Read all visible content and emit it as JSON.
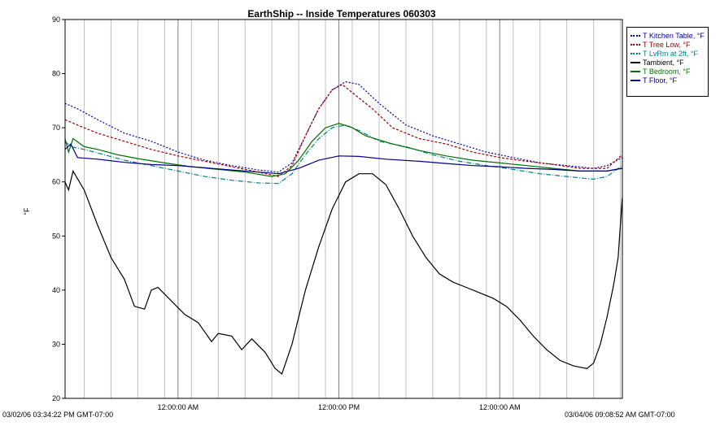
{
  "chart_data": {
    "type": "line",
    "title": "EarthShip -- Inside Temperatures 060303",
    "ylabel": "°F",
    "xlabel": "",
    "ylim": [
      20,
      90
    ],
    "y_ticks": [
      "20",
      "30",
      "40",
      "50",
      "60",
      "70",
      "80",
      "90"
    ],
    "x_range": [
      "2006-03-02T15:34:22-07:00",
      "2006-03-04T09:08:52-07:00"
    ],
    "x_ticks": [
      {
        "t": "2006-03-03T00:00:00-07:00",
        "label": "12:00:00 AM"
      },
      {
        "t": "2006-03-03T12:00:00-07:00",
        "label": "12:00:00 PM"
      },
      {
        "t": "2006-03-04T00:00:00-07:00",
        "label": "12:00:00 AM"
      }
    ],
    "x_start_label": "03/02/06 03:34:22 PM GMT-07:00",
    "x_end_label": "03/04/06 09:08:52 AM GMT-07:00",
    "grid": "vertical lines",
    "legend_position": "top-right",
    "series": [
      {
        "name": "T Kitchen Table, °F",
        "color": "#0000a0",
        "dash": "2,2",
        "points": [
          [
            "2006-03-02T15:34",
            "74.5"
          ],
          [
            "2006-03-02T16:30",
            "73.5"
          ],
          [
            "2006-03-02T18:00",
            "71.5"
          ],
          [
            "2006-03-02T20:00",
            "69.0"
          ],
          [
            "2006-03-02T22:00",
            "67.5"
          ],
          [
            "2006-03-03T00:00",
            "65.5"
          ],
          [
            "2006-03-03T02:00",
            "64.0"
          ],
          [
            "2006-03-03T04:00",
            "63.0"
          ],
          [
            "2006-03-03T06:00",
            "62.2"
          ],
          [
            "2006-03-03T07:30",
            "61.8"
          ],
          [
            "2006-03-03T08:30",
            "63.5"
          ],
          [
            "2006-03-03T09:30",
            "68.5"
          ],
          [
            "2006-03-03T10:30",
            "73.5"
          ],
          [
            "2006-03-03T11:30",
            "77.0"
          ],
          [
            "2006-03-03T12:30",
            "78.5"
          ],
          [
            "2006-03-03T13:30",
            "78.0"
          ],
          [
            "2006-03-03T15:00",
            "74.5"
          ],
          [
            "2006-03-03T17:00",
            "70.5"
          ],
          [
            "2006-03-03T19:00",
            "68.5"
          ],
          [
            "2006-03-03T21:00",
            "67.0"
          ],
          [
            "2006-03-03T23:00",
            "65.5"
          ],
          [
            "2006-03-04T01:00",
            "64.5"
          ],
          [
            "2006-03-04T03:00",
            "63.5"
          ],
          [
            "2006-03-04T05:00",
            "63.0"
          ],
          [
            "2006-03-04T07:00",
            "62.5"
          ],
          [
            "2006-03-04T08:00",
            "63.0"
          ],
          [
            "2006-03-04T09:08",
            "64.5"
          ]
        ]
      },
      {
        "name": "T Tree Low, °F",
        "color": "#a00000",
        "dash": "3,2",
        "points": [
          [
            "2006-03-02T15:34",
            "71.5"
          ],
          [
            "2006-03-02T16:30",
            "70.5"
          ],
          [
            "2006-03-02T18:00",
            "69.0"
          ],
          [
            "2006-03-02T20:00",
            "67.5"
          ],
          [
            "2006-03-02T22:00",
            "66.0"
          ],
          [
            "2006-03-03T00:00",
            "64.8"
          ],
          [
            "2006-03-03T02:00",
            "63.8"
          ],
          [
            "2006-03-03T04:00",
            "62.8"
          ],
          [
            "2006-03-03T06:00",
            "61.8"
          ],
          [
            "2006-03-03T07:30",
            "61.0"
          ],
          [
            "2006-03-03T08:30",
            "63.0"
          ],
          [
            "2006-03-03T09:30",
            "68.5"
          ],
          [
            "2006-03-03T10:30",
            "73.5"
          ],
          [
            "2006-03-03T11:30",
            "77.0"
          ],
          [
            "2006-03-03T12:15",
            "78.0"
          ],
          [
            "2006-03-03T13:00",
            "76.5"
          ],
          [
            "2006-03-03T14:30",
            "73.5"
          ],
          [
            "2006-03-03T16:00",
            "70.0"
          ],
          [
            "2006-03-03T18:00",
            "68.0"
          ],
          [
            "2006-03-03T20:00",
            "67.0"
          ],
          [
            "2006-03-03T22:00",
            "65.5"
          ],
          [
            "2006-03-04T00:00",
            "64.5"
          ],
          [
            "2006-03-04T02:00",
            "63.8"
          ],
          [
            "2006-03-04T04:00",
            "63.2"
          ],
          [
            "2006-03-04T06:00",
            "62.5"
          ],
          [
            "2006-03-04T08:00",
            "62.5"
          ],
          [
            "2006-03-04T09:08",
            "65.0"
          ]
        ]
      },
      {
        "name": "T LvRm at 2ft, °F",
        "color": "#008080",
        "dash": "6,2,1,2",
        "points": [
          [
            "2006-03-02T15:34",
            "67.5"
          ],
          [
            "2006-03-02T16:00",
            "66.5"
          ],
          [
            "2006-03-02T17:00",
            "66.0"
          ],
          [
            "2006-03-02T18:30",
            "65.0"
          ],
          [
            "2006-03-02T20:00",
            "64.0"
          ],
          [
            "2006-03-02T22:00",
            "63.0"
          ],
          [
            "2006-03-03T00:00",
            "62.0"
          ],
          [
            "2006-03-03T02:00",
            "61.0"
          ],
          [
            "2006-03-03T04:00",
            "60.3"
          ],
          [
            "2006-03-03T06:00",
            "59.8"
          ],
          [
            "2006-03-03T07:30",
            "59.7"
          ],
          [
            "2006-03-03T08:30",
            "61.5"
          ],
          [
            "2006-03-03T09:30",
            "65.0"
          ],
          [
            "2006-03-03T10:30",
            "68.0"
          ],
          [
            "2006-03-03T11:30",
            "70.0"
          ],
          [
            "2006-03-03T12:30",
            "70.5"
          ],
          [
            "2006-03-03T13:30",
            "69.5"
          ],
          [
            "2006-03-03T15:00",
            "67.5"
          ],
          [
            "2006-03-03T17:00",
            "66.5"
          ],
          [
            "2006-03-03T19:00",
            "65.0"
          ],
          [
            "2006-03-03T21:00",
            "63.8"
          ],
          [
            "2006-03-03T23:00",
            "63.0"
          ],
          [
            "2006-03-04T01:00",
            "62.3"
          ],
          [
            "2006-03-04T03:00",
            "61.5"
          ],
          [
            "2006-03-04T05:00",
            "61.0"
          ],
          [
            "2006-03-04T07:00",
            "60.5"
          ],
          [
            "2006-03-04T08:00",
            "61.0"
          ],
          [
            "2006-03-04T09:08",
            "63.0"
          ]
        ]
      },
      {
        "name": "Tambient, °F",
        "color": "#000000",
        "dash": "",
        "points": [
          [
            "2006-03-02T15:34",
            "60.0"
          ],
          [
            "2006-03-02T15:50",
            "58.5"
          ],
          [
            "2006-03-02T16:10",
            "62.0"
          ],
          [
            "2006-03-02T17:00",
            "58.5"
          ],
          [
            "2006-03-02T18:00",
            "52.0"
          ],
          [
            "2006-03-02T19:00",
            "46.0"
          ],
          [
            "2006-03-02T20:00",
            "42.0"
          ],
          [
            "2006-03-02T20:45",
            "37.0"
          ],
          [
            "2006-03-02T21:30",
            "36.5"
          ],
          [
            "2006-03-02T22:00",
            "40.0"
          ],
          [
            "2006-03-02T22:30",
            "40.5"
          ],
          [
            "2006-03-02T23:30",
            "38.0"
          ],
          [
            "2006-03-03T00:30",
            "35.5"
          ],
          [
            "2006-03-03T01:30",
            "34.0"
          ],
          [
            "2006-03-03T02:30",
            "30.5"
          ],
          [
            "2006-03-03T03:00",
            "32.0"
          ],
          [
            "2006-03-03T04:00",
            "31.5"
          ],
          [
            "2006-03-03T04:45",
            "29.0"
          ],
          [
            "2006-03-03T05:30",
            "31.0"
          ],
          [
            "2006-03-03T06:30",
            "28.5"
          ],
          [
            "2006-03-03T07:15",
            "25.5"
          ],
          [
            "2006-03-03T07:45",
            "24.5"
          ],
          [
            "2006-03-03T08:30",
            "30.0"
          ],
          [
            "2006-03-03T09:30",
            "40.0"
          ],
          [
            "2006-03-03T10:30",
            "48.0"
          ],
          [
            "2006-03-03T11:30",
            "55.0"
          ],
          [
            "2006-03-03T12:30",
            "60.0"
          ],
          [
            "2006-03-03T13:30",
            "61.5"
          ],
          [
            "2006-03-03T14:30",
            "61.5"
          ],
          [
            "2006-03-03T15:30",
            "59.5"
          ],
          [
            "2006-03-03T16:30",
            "55.0"
          ],
          [
            "2006-03-03T17:30",
            "50.0"
          ],
          [
            "2006-03-03T18:30",
            "46.0"
          ],
          [
            "2006-03-03T19:30",
            "43.0"
          ],
          [
            "2006-03-03T20:30",
            "41.5"
          ],
          [
            "2006-03-03T21:30",
            "40.5"
          ],
          [
            "2006-03-03T22:30",
            "39.5"
          ],
          [
            "2006-03-03T23:30",
            "38.5"
          ],
          [
            "2006-03-04T00:30",
            "37.0"
          ],
          [
            "2006-03-04T01:30",
            "34.5"
          ],
          [
            "2006-03-04T02:30",
            "31.5"
          ],
          [
            "2006-03-04T03:30",
            "29.0"
          ],
          [
            "2006-03-04T04:30",
            "27.0"
          ],
          [
            "2006-03-04T05:30",
            "26.0"
          ],
          [
            "2006-03-04T06:30",
            "25.5"
          ],
          [
            "2006-03-04T07:00",
            "26.5"
          ],
          [
            "2006-03-04T07:30",
            "30.0"
          ],
          [
            "2006-03-04T08:00",
            "35.0"
          ],
          [
            "2006-03-04T08:30",
            "41.0"
          ],
          [
            "2006-03-04T08:50",
            "46.0"
          ],
          [
            "2006-03-04T09:08",
            "57.0"
          ]
        ]
      },
      {
        "name": "T Bedroom, °F",
        "color": "#007000",
        "dash": "",
        "points": [
          [
            "2006-03-02T15:34",
            "68.0"
          ],
          [
            "2006-03-02T15:50",
            "65.5"
          ],
          [
            "2006-03-02T16:10",
            "68.0"
          ],
          [
            "2006-03-02T17:00",
            "66.5"
          ],
          [
            "2006-03-02T18:00",
            "66.0"
          ],
          [
            "2006-03-02T19:30",
            "65.0"
          ],
          [
            "2006-03-02T21:00",
            "64.3"
          ],
          [
            "2006-03-02T23:00",
            "63.5"
          ],
          [
            "2006-03-03T01:00",
            "62.8"
          ],
          [
            "2006-03-03T03:00",
            "62.3"
          ],
          [
            "2006-03-03T05:00",
            "61.8"
          ],
          [
            "2006-03-03T07:00",
            "61.0"
          ],
          [
            "2006-03-03T08:00",
            "61.5"
          ],
          [
            "2006-03-03T09:00",
            "64.0"
          ],
          [
            "2006-03-03T10:00",
            "67.5"
          ],
          [
            "2006-03-03T11:00",
            "70.0"
          ],
          [
            "2006-03-03T12:00",
            "70.8"
          ],
          [
            "2006-03-03T13:00",
            "70.0"
          ],
          [
            "2006-03-03T14:00",
            "68.5"
          ],
          [
            "2006-03-03T16:00",
            "67.0"
          ],
          [
            "2006-03-03T18:00",
            "65.8"
          ],
          [
            "2006-03-03T20:00",
            "64.8"
          ],
          [
            "2006-03-03T22:00",
            "64.0"
          ],
          [
            "2006-03-04T00:00",
            "63.5"
          ],
          [
            "2006-03-04T02:00",
            "63.0"
          ],
          [
            "2006-03-04T04:00",
            "62.5"
          ],
          [
            "2006-03-04T06:00",
            "62.0"
          ],
          [
            "2006-03-04T08:00",
            "62.0"
          ],
          [
            "2006-03-04T09:08",
            "62.5"
          ]
        ]
      },
      {
        "name": "T Floor, °F",
        "color": "#000080",
        "dash": "",
        "points": [
          [
            "2006-03-02T15:34",
            "66.0"
          ],
          [
            "2006-03-02T16:00",
            "67.0"
          ],
          [
            "2006-03-02T16:30",
            "64.5"
          ],
          [
            "2006-03-02T18:00",
            "64.2"
          ],
          [
            "2006-03-02T20:00",
            "63.6"
          ],
          [
            "2006-03-02T22:00",
            "63.2"
          ],
          [
            "2006-03-03T00:00",
            "63.0"
          ],
          [
            "2006-03-03T02:00",
            "62.6"
          ],
          [
            "2006-03-03T04:00",
            "62.2"
          ],
          [
            "2006-03-03T06:00",
            "61.8"
          ],
          [
            "2006-03-03T07:30",
            "61.5"
          ],
          [
            "2006-03-03T09:00",
            "62.5"
          ],
          [
            "2006-03-03T10:30",
            "64.0"
          ],
          [
            "2006-03-03T12:00",
            "64.8"
          ],
          [
            "2006-03-03T13:30",
            "64.7"
          ],
          [
            "2006-03-03T15:30",
            "64.2"
          ],
          [
            "2006-03-03T18:00",
            "63.8"
          ],
          [
            "2006-03-03T20:00",
            "63.4"
          ],
          [
            "2006-03-03T22:00",
            "63.0"
          ],
          [
            "2006-03-04T00:00",
            "62.8"
          ],
          [
            "2006-03-04T02:00",
            "62.5"
          ],
          [
            "2006-03-04T04:00",
            "62.3"
          ],
          [
            "2006-03-04T06:00",
            "62.0"
          ],
          [
            "2006-03-04T08:00",
            "62.0"
          ],
          [
            "2006-03-04T09:08",
            "62.5"
          ]
        ]
      }
    ]
  }
}
